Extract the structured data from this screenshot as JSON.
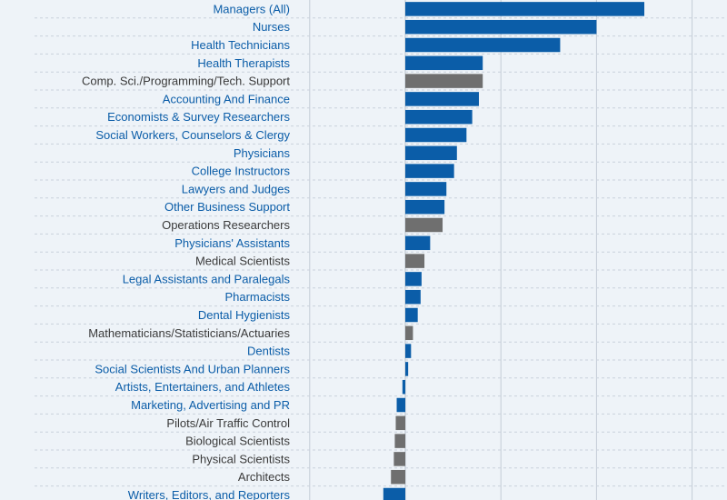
{
  "chart_data": {
    "type": "bar",
    "orientation": "horizontal",
    "grid": true,
    "colors": {
      "highlight": "#0b5da8",
      "other": "#6f6f6f",
      "background": "#eef3f8",
      "gridline": "#c4ccd6"
    },
    "categories": [
      "Managers (All)",
      "Nurses",
      "Health Technicians",
      "Health Therapists",
      "Comp. Sci./Programming/Tech. Support",
      "Accounting And Finance",
      "Economists & Survey Researchers",
      "Social Workers, Counselors & Clergy",
      "Physicians",
      "College Instructors",
      "Lawyers and Judges",
      "Other Business Support",
      "Operations Researchers",
      "Physicians' Assistants",
      "Medical Scientists",
      "Legal Assistants and Paralegals",
      "Pharmacists",
      "Dental Hygienists",
      "Mathematicians/Statisticians/Actuaries",
      "Dentists",
      "Social Scientists And Urban Planners",
      "Artists, Entertainers, and Athletes",
      "Marketing, Advertising and PR",
      "Pilots/Air Traffic Control",
      "Biological Scientists",
      "Physical Scientists",
      "Architects",
      "Writers, Editors, and Reporters"
    ],
    "values": [
      250,
      200,
      162,
      81,
      81,
      77,
      70,
      64,
      54,
      51,
      43,
      41,
      39,
      26,
      20,
      17,
      16,
      13,
      8,
      6,
      3,
      -3,
      -9,
      -10,
      -11,
      -12,
      -15,
      -23
    ],
    "highlighted": [
      true,
      true,
      true,
      true,
      false,
      true,
      true,
      true,
      true,
      true,
      true,
      true,
      false,
      true,
      false,
      true,
      true,
      true,
      false,
      true,
      true,
      true,
      true,
      false,
      false,
      false,
      false,
      true
    ],
    "xlim": [
      -100,
      300
    ],
    "x_gridlines": [
      -100,
      0,
      100,
      200,
      300
    ]
  }
}
